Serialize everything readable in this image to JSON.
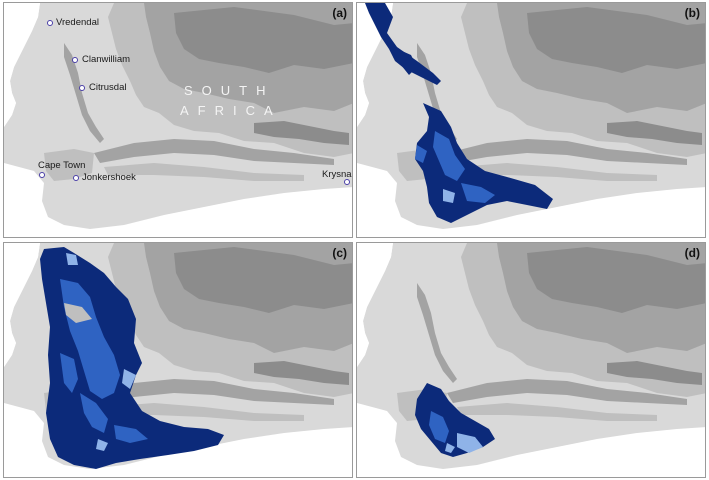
{
  "panels": [
    {
      "label": "(a)"
    },
    {
      "label": "(b)"
    },
    {
      "label": "(c)"
    },
    {
      "label": "(d)"
    }
  ],
  "map": {
    "country_lines": [
      "SOUTH",
      "AFRICA"
    ],
    "towns": [
      "Vredendal",
      "Clanwilliam",
      "Citrusdal",
      "Cape Town",
      "Jonkershoek",
      "Krysna"
    ]
  },
  "colors": {
    "sea": "#ffffff",
    "land_low": "#d9d9d9",
    "land_mid": "#bfbfbf",
    "land_high": "#a3a3a3",
    "land_peak": "#8c8c8c",
    "dist_dark": "#0c2a7a",
    "dist_mid": "#2f63c2",
    "dist_light": "#8fb3e8",
    "marker": "#4a3fa8"
  }
}
